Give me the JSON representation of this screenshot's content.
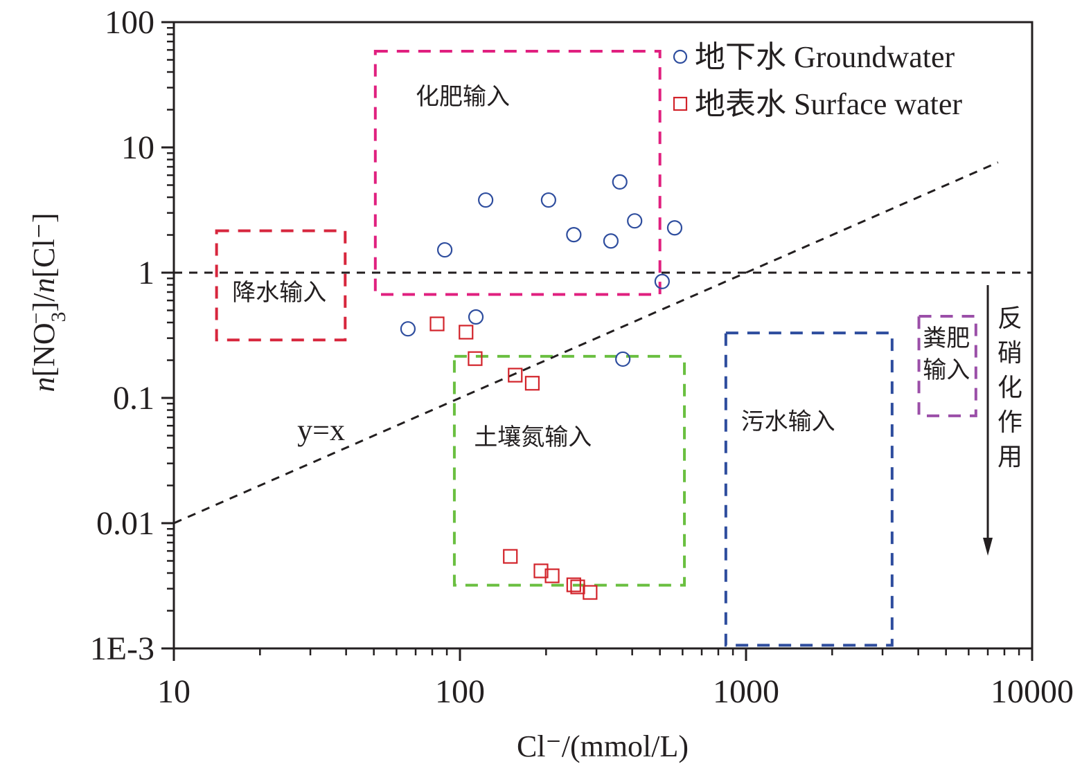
{
  "chart_data": {
    "type": "scatter",
    "title": "",
    "xlabel": "Cl⁻/(mmol/L)",
    "ylabel": {
      "prefix_italic": "n",
      "part1": "[NO",
      "sub": "3",
      "sup": "−",
      "part2": "]/",
      "mid_italic": "n",
      "part3": "[Cl⁻]"
    },
    "x_scale": "log",
    "y_scale": "log",
    "xlim": [
      10,
      10000
    ],
    "ylim": [
      0.001,
      100
    ],
    "x_ticks": [
      {
        "value": 10,
        "label": "10"
      },
      {
        "value": 100,
        "label": "100"
      },
      {
        "value": 1000,
        "label": "1000"
      },
      {
        "value": 10000,
        "label": "10000"
      }
    ],
    "y_ticks": [
      {
        "value": 100,
        "label": "100"
      },
      {
        "value": 10,
        "label": "10"
      },
      {
        "value": 1,
        "label": "1"
      },
      {
        "value": 0.1,
        "label": "0.1"
      },
      {
        "value": 0.01,
        "label": "0.01"
      },
      {
        "value": 0.001,
        "label": "1E-3"
      }
    ],
    "grid": false,
    "legend_position": "top-right",
    "series": [
      {
        "name": "地下水 Groundwater",
        "marker": "circle",
        "color": "#2e4d9e",
        "points": [
          {
            "x": 65.8,
            "y": 0.356
          },
          {
            "x": 88.5,
            "y": 1.52
          },
          {
            "x": 113.7,
            "y": 0.443
          },
          {
            "x": 123,
            "y": 3.8
          },
          {
            "x": 204,
            "y": 3.8
          },
          {
            "x": 250,
            "y": 2.01
          },
          {
            "x": 337,
            "y": 1.79
          },
          {
            "x": 362,
            "y": 5.3
          },
          {
            "x": 408,
            "y": 2.59
          },
          {
            "x": 563,
            "y": 2.28
          },
          {
            "x": 509,
            "y": 0.85
          },
          {
            "x": 371,
            "y": 0.204
          }
        ]
      },
      {
        "name": "地表水 Surface water",
        "marker": "square",
        "color": "#d2232a",
        "points": [
          {
            "x": 83.2,
            "y": 0.39
          },
          {
            "x": 105,
            "y": 0.335
          },
          {
            "x": 113,
            "y": 0.206
          },
          {
            "x": 156,
            "y": 0.152
          },
          {
            "x": 179,
            "y": 0.131
          },
          {
            "x": 150,
            "y": 0.00543
          },
          {
            "x": 192,
            "y": 0.00416
          },
          {
            "x": 210,
            "y": 0.0038
          },
          {
            "x": 250,
            "y": 0.00322
          },
          {
            "x": 258,
            "y": 0.0031
          },
          {
            "x": 285,
            "y": 0.0028
          }
        ]
      }
    ],
    "reference_lines": [
      {
        "name": "y=1",
        "label": "",
        "points": [
          [
            10,
            1
          ],
          [
            10000,
            1
          ]
        ]
      },
      {
        "name": "y=x",
        "label": "y=x",
        "points": [
          [
            10,
            0.01
          ],
          [
            7600,
            7.6
          ]
        ],
        "label_at": {
          "x": 27,
          "y": 0.046
        }
      }
    ],
    "regions": [
      {
        "label": "降水输入",
        "color": "#d7263d",
        "x": [
          14.1,
          39.7
        ],
        "y": [
          0.29,
          2.16
        ],
        "label_at": {
          "x": 16,
          "y": 0.6
        }
      },
      {
        "label": "化肥输入",
        "color": "#e0207f",
        "x": [
          50.6,
          500
        ],
        "y": [
          0.67,
          58.6
        ],
        "label_at": {
          "x": 70,
          "y": 22
        }
      },
      {
        "label": "土壤氮输入",
        "color": "#6abf40",
        "x": [
          95.6,
          609
        ],
        "y": [
          0.0032,
          0.215
        ],
        "label_at": {
          "x": 112,
          "y": 0.042
        }
      },
      {
        "label": "污水输入",
        "color": "#2e4d9e",
        "x": [
          850,
          3240
        ],
        "y": [
          0.00106,
          0.33
        ],
        "label_at": {
          "x": 960,
          "y": 0.056
        }
      },
      {
        "label": "粪肥输入",
        "color": "#9b4fa8",
        "x": [
          4020,
          6360
        ],
        "y": [
          0.072,
          0.449
        ],
        "label_lines": [
          "粪肥",
          "输入"
        ],
        "label_at": {
          "x": 4150,
          "y": 0.26
        }
      }
    ],
    "annotations": [
      {
        "text": "反硝化作用",
        "type": "arrow-down",
        "x": 7000,
        "from_y": 1.0,
        "to_y": 0.0055
      }
    ]
  }
}
